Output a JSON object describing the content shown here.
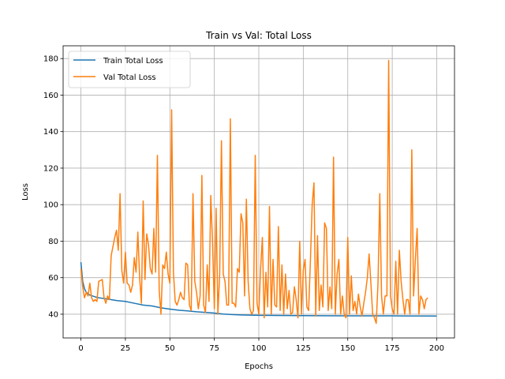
{
  "chart_data": {
    "type": "line",
    "title": "Train vs Val: Total Loss",
    "xlabel": "Epochs",
    "ylabel": "Loss",
    "xlim": [
      -10,
      210
    ],
    "ylim": [
      27,
      187
    ],
    "xticks": [
      0,
      25,
      50,
      75,
      100,
      125,
      150,
      175,
      200
    ],
    "yticks": [
      40,
      60,
      80,
      100,
      120,
      140,
      160,
      180
    ],
    "grid": true,
    "legend_position": "top-left",
    "series": [
      {
        "name": "Train Total Loss",
        "color": "#1f77b4",
        "points": [
          [
            0,
            68.5
          ],
          [
            1,
            58
          ],
          [
            2,
            54
          ],
          [
            3,
            52
          ],
          [
            5,
            50.5
          ],
          [
            8,
            49.5
          ],
          [
            10,
            49
          ],
          [
            15,
            48.3
          ],
          [
            20,
            47.5
          ],
          [
            25,
            47
          ],
          [
            30,
            46
          ],
          [
            35,
            45
          ],
          [
            40,
            44.5
          ],
          [
            45,
            43.5
          ],
          [
            50,
            42.8
          ],
          [
            55,
            42.2
          ],
          [
            60,
            41.8
          ],
          [
            65,
            41.3
          ],
          [
            70,
            41
          ],
          [
            75,
            40.6
          ],
          [
            80,
            40.1
          ],
          [
            85,
            39.8
          ],
          [
            90,
            39.6
          ],
          [
            100,
            39.4
          ],
          [
            110,
            39.3
          ],
          [
            125,
            39.2
          ],
          [
            150,
            39.1
          ],
          [
            175,
            39.1
          ],
          [
            200,
            39
          ]
        ]
      },
      {
        "name": "Val Total Loss",
        "color": "#ff7f0e",
        "points": [
          [
            0,
            65
          ],
          [
            1,
            55
          ],
          [
            2,
            49
          ],
          [
            3,
            52
          ],
          [
            4,
            50
          ],
          [
            5,
            57
          ],
          [
            6,
            49
          ],
          [
            7,
            47
          ],
          [
            8,
            48
          ],
          [
            9,
            47
          ],
          [
            10,
            58
          ],
          [
            12,
            59
          ],
          [
            13,
            49
          ],
          [
            14,
            46
          ],
          [
            15,
            50
          ],
          [
            16,
            48
          ],
          [
            17,
            72
          ],
          [
            18,
            77
          ],
          [
            19,
            82
          ],
          [
            20,
            86
          ],
          [
            21,
            75
          ],
          [
            22,
            106
          ],
          [
            23,
            64
          ],
          [
            24,
            57
          ],
          [
            25,
            74
          ],
          [
            26,
            57
          ],
          [
            27,
            56
          ],
          [
            28,
            52
          ],
          [
            29,
            56
          ],
          [
            30,
            71
          ],
          [
            31,
            63
          ],
          [
            32,
            85
          ],
          [
            33,
            60
          ],
          [
            34,
            46
          ],
          [
            35,
            102
          ],
          [
            36,
            59
          ],
          [
            37,
            84
          ],
          [
            38,
            78
          ],
          [
            39,
            65
          ],
          [
            40,
            62
          ],
          [
            41,
            87
          ],
          [
            42,
            63
          ],
          [
            43,
            127
          ],
          [
            44,
            53
          ],
          [
            45,
            40
          ],
          [
            46,
            67
          ],
          [
            47,
            65
          ],
          [
            48,
            74
          ],
          [
            49,
            62
          ],
          [
            50,
            57
          ],
          [
            51,
            152
          ],
          [
            52,
            63
          ],
          [
            53,
            47
          ],
          [
            54,
            45
          ],
          [
            55,
            48
          ],
          [
            56,
            52
          ],
          [
            57,
            49
          ],
          [
            58,
            48
          ],
          [
            59,
            68
          ],
          [
            60,
            67
          ],
          [
            61,
            45
          ],
          [
            62,
            42
          ],
          [
            63,
            106
          ],
          [
            64,
            58
          ],
          [
            65,
            52
          ],
          [
            66,
            43
          ],
          [
            67,
            50
          ],
          [
            68,
            116
          ],
          [
            69,
            45
          ],
          [
            70,
            41
          ],
          [
            71,
            67
          ],
          [
            72,
            47
          ],
          [
            73,
            105
          ],
          [
            74,
            79
          ],
          [
            75,
            43
          ],
          [
            76,
            98
          ],
          [
            77,
            40
          ],
          [
            78,
            62
          ],
          [
            79,
            135
          ],
          [
            80,
            62
          ],
          [
            81,
            58
          ],
          [
            82,
            45
          ],
          [
            83,
            45
          ],
          [
            84,
            147
          ],
          [
            85,
            46
          ],
          [
            86,
            46
          ],
          [
            87,
            44
          ],
          [
            88,
            65
          ],
          [
            89,
            63
          ],
          [
            90,
            95
          ],
          [
            91,
            90
          ],
          [
            92,
            50
          ],
          [
            93,
            103
          ],
          [
            94,
            58
          ],
          [
            95,
            43
          ],
          [
            96,
            40
          ],
          [
            97,
            42
          ],
          [
            98,
            127
          ],
          [
            99,
            46
          ],
          [
            100,
            40
          ],
          [
            101,
            65
          ],
          [
            102,
            82
          ],
          [
            103,
            38
          ],
          [
            104,
            63
          ],
          [
            105,
            44
          ],
          [
            106,
            99
          ],
          [
            107,
            40
          ],
          [
            108,
            70
          ],
          [
            109,
            45
          ],
          [
            110,
            44
          ],
          [
            111,
            88
          ],
          [
            112,
            42
          ],
          [
            113,
            67
          ],
          [
            114,
            40
          ],
          [
            115,
            62
          ],
          [
            116,
            43
          ],
          [
            117,
            53
          ],
          [
            118,
            40
          ],
          [
            119,
            41
          ],
          [
            120,
            55
          ],
          [
            121,
            48
          ],
          [
            122,
            38
          ],
          [
            123,
            80
          ],
          [
            124,
            40
          ],
          [
            125,
            64
          ],
          [
            126,
            70
          ],
          [
            127,
            44
          ],
          [
            128,
            42
          ],
          [
            129,
            69
          ],
          [
            130,
            100
          ],
          [
            131,
            112
          ],
          [
            132,
            39
          ],
          [
            133,
            83
          ],
          [
            134,
            42
          ],
          [
            135,
            56
          ],
          [
            136,
            44
          ],
          [
            137,
            90
          ],
          [
            138,
            87
          ],
          [
            139,
            42
          ],
          [
            140,
            55
          ],
          [
            141,
            43
          ],
          [
            142,
            126
          ],
          [
            143,
            40
          ],
          [
            144,
            62
          ],
          [
            145,
            70
          ],
          [
            146,
            40
          ],
          [
            147,
            50
          ],
          [
            148,
            40
          ],
          [
            149,
            38
          ],
          [
            150,
            82
          ],
          [
            151,
            40
          ],
          [
            152,
            61
          ],
          [
            153,
            42
          ],
          [
            154,
            47
          ],
          [
            155,
            40
          ],
          [
            156,
            51
          ],
          [
            157,
            44
          ],
          [
            158,
            39
          ],
          [
            159,
            46
          ],
          [
            160,
            52
          ],
          [
            161,
            60
          ],
          [
            162,
            73
          ],
          [
            163,
            57
          ],
          [
            164,
            40
          ],
          [
            165,
            38
          ],
          [
            166,
            35
          ],
          [
            167,
            57
          ],
          [
            168,
            106
          ],
          [
            169,
            50
          ],
          [
            170,
            40
          ],
          [
            171,
            50
          ],
          [
            172,
            50
          ],
          [
            173,
            179
          ],
          [
            174,
            50
          ],
          [
            175,
            43
          ],
          [
            176,
            40
          ],
          [
            177,
            69
          ],
          [
            178,
            40
          ],
          [
            179,
            75
          ],
          [
            180,
            58
          ],
          [
            181,
            48
          ],
          [
            182,
            40
          ],
          [
            183,
            48
          ],
          [
            184,
            48
          ],
          [
            185,
            40
          ],
          [
            186,
            130
          ],
          [
            187,
            50
          ],
          [
            188,
            70
          ],
          [
            189,
            87
          ],
          [
            190,
            40
          ],
          [
            191,
            50
          ],
          [
            192,
            48
          ],
          [
            193,
            43
          ],
          [
            194,
            48
          ],
          [
            195,
            49
          ]
        ]
      }
    ]
  }
}
